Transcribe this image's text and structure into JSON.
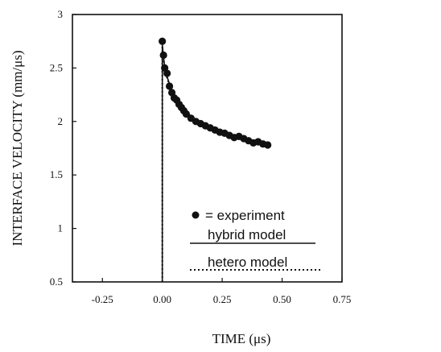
{
  "chart_data": {
    "type": "line",
    "xlabel": "TIME  (μs)",
    "ylabel": "INTERFACE VELOCITY  (mm/μs)",
    "xlim": [
      -0.375,
      0.75
    ],
    "ylim": [
      0.5,
      3.0
    ],
    "x_ticks": [
      "-0.25",
      "0.00",
      "0.25",
      "0.50",
      "0.75"
    ],
    "x_tick_values": [
      -0.25,
      0.0,
      0.25,
      0.5,
      0.75
    ],
    "y_ticks": [
      "0.5",
      "1",
      "1.5",
      "2",
      "2.5",
      "3"
    ],
    "y_tick_values": [
      0.5,
      1.0,
      1.5,
      2.0,
      2.5,
      3.0
    ],
    "grid": false,
    "series": [
      {
        "name": "experiment",
        "style": "markers",
        "color": "#111111",
        "x": [
          0.0,
          0.005,
          0.01,
          0.02,
          0.03,
          0.04,
          0.05,
          0.06,
          0.07,
          0.08,
          0.09,
          0.1,
          0.12,
          0.14,
          0.16,
          0.18,
          0.2,
          0.22,
          0.24,
          0.26,
          0.28,
          0.3,
          0.32,
          0.34,
          0.36,
          0.38,
          0.4,
          0.42,
          0.44
        ],
        "y": [
          2.75,
          2.62,
          2.5,
          2.45,
          2.33,
          2.27,
          2.22,
          2.2,
          2.16,
          2.13,
          2.1,
          2.07,
          2.03,
          2.0,
          1.98,
          1.96,
          1.94,
          1.92,
          1.9,
          1.89,
          1.87,
          1.85,
          1.86,
          1.84,
          1.82,
          1.8,
          1.81,
          1.79,
          1.78
        ]
      },
      {
        "name": "hybrid model",
        "style": "solid",
        "color": "#111111",
        "x": [
          0.0,
          0.0,
          0.005,
          0.01,
          0.02,
          0.03,
          0.05,
          0.07,
          0.1,
          0.13,
          0.16,
          0.2,
          0.25,
          0.3,
          0.35,
          0.4,
          0.44
        ],
        "y": [
          0.5,
          2.72,
          2.6,
          2.52,
          2.42,
          2.35,
          2.25,
          2.18,
          2.09,
          2.03,
          1.98,
          1.94,
          1.9,
          1.86,
          1.83,
          1.81,
          1.8
        ]
      },
      {
        "name": "hetero model",
        "style": "dotted",
        "color": "#111111",
        "x": [
          0.0,
          0.0,
          0.005,
          0.01,
          0.02,
          0.03,
          0.05,
          0.07,
          0.1,
          0.13,
          0.16,
          0.2,
          0.25,
          0.3,
          0.35,
          0.4,
          0.44
        ],
        "y": [
          0.5,
          2.7,
          2.58,
          2.5,
          2.41,
          2.34,
          2.24,
          2.17,
          2.08,
          2.02,
          1.97,
          1.93,
          1.89,
          1.85,
          1.82,
          1.8,
          1.79
        ]
      }
    ],
    "legend": {
      "placement": "inside-center-bottom",
      "marker_label": "= experiment",
      "solid_label": "hybrid model",
      "dotted_label": "hetero model"
    }
  }
}
